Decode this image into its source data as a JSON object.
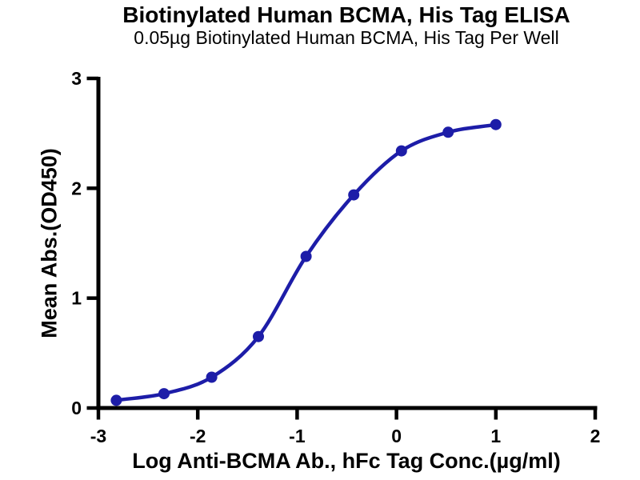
{
  "chart_data": {
    "type": "scatter",
    "title": "Biotinylated Human BCMA, His Tag ELISA",
    "subtitle": "0.05µg Biotinylated Human BCMA, His Tag Per Well",
    "xlabel": "Log Anti-BCMA Ab., hFc Tag Conc.(µg/ml)",
    "ylabel": "Mean Abs.(OD450)",
    "x": [
      -2.82,
      -2.34,
      -1.86,
      -1.39,
      -0.91,
      -0.43,
      0.05,
      0.52,
      1.0
    ],
    "y": [
      0.07,
      0.13,
      0.28,
      0.65,
      1.38,
      1.94,
      2.34,
      2.51,
      2.58
    ],
    "xlim": [
      -3,
      2
    ],
    "ylim": [
      0,
      3
    ],
    "x_ticks": [
      -3,
      -2,
      -1,
      0,
      1,
      2
    ],
    "y_ticks": [
      0,
      1,
      2,
      3
    ],
    "curve": "4PL sigmoid fit through points",
    "grid": false,
    "legend": false,
    "series_color": "#1d1da8",
    "axis_color": "#000000",
    "background_color": "#ffffff"
  }
}
